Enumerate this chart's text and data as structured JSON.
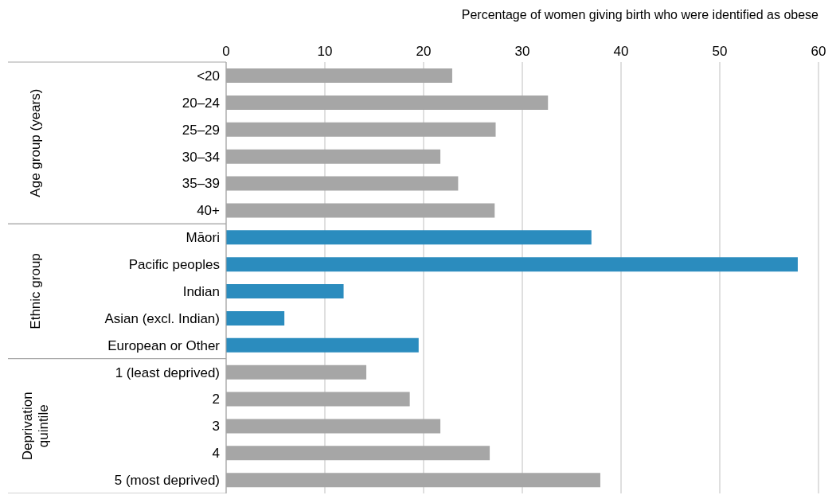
{
  "chart_data": {
    "type": "bar",
    "orientation": "horizontal",
    "xlabel": "Percentage of women giving birth who were identified as obese",
    "categories": [
      "<20",
      "20–24",
      "25–29",
      "30–34",
      "35–39",
      "40+",
      "Māori",
      "Pacific peoples",
      "Indian",
      "Asian (excl. Indian)",
      "European or Other",
      "1 (least deprived)",
      "2",
      "3",
      "4",
      "5 (most deprived)"
    ],
    "values": [
      22.9,
      32.6,
      27.3,
      21.7,
      23.5,
      27.2,
      37.0,
      57.9,
      11.9,
      5.9,
      19.5,
      14.2,
      18.6,
      21.7,
      26.7,
      37.9
    ],
    "colors": [
      "#a6a6a6",
      "#a6a6a6",
      "#a6a6a6",
      "#a6a6a6",
      "#a6a6a6",
      "#a6a6a6",
      "#2b8cbe",
      "#2b8cbe",
      "#2b8cbe",
      "#2b8cbe",
      "#2b8cbe",
      "#a6a6a6",
      "#a6a6a6",
      "#a6a6a6",
      "#a6a6a6",
      "#a6a6a6"
    ],
    "xlim": [
      0,
      60
    ],
    "xticks": [
      0,
      10,
      20,
      30,
      40,
      50,
      60
    ],
    "grid": "x",
    "annotations": [
      "Age group (years)",
      "Ethnic group",
      "Deprivation quintile"
    ]
  }
}
